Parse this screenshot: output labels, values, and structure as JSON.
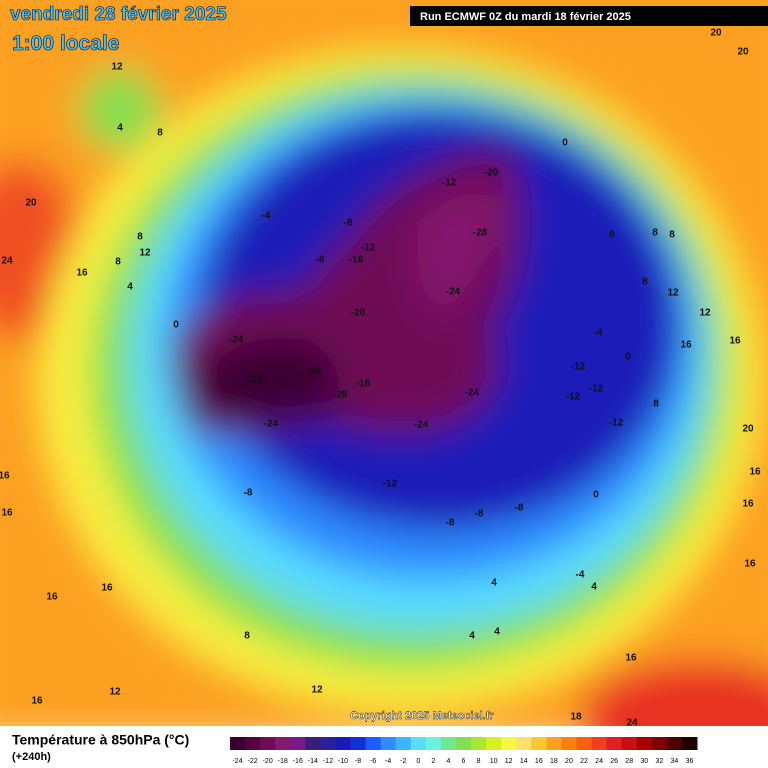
{
  "header": {
    "title": "vendredi 28 février 2025",
    "time": "1:00 locale",
    "run": "Run ECMWF 0Z du mardi 18 février 2025"
  },
  "copyright": "Copyright 2025 Meteociel.fr",
  "legend": {
    "title": "Température à 850hPa (°C)",
    "lead": "(+240h)",
    "ticks": [
      -24,
      -22,
      -20,
      -18,
      -16,
      -14,
      -12,
      -10,
      -8,
      -6,
      -4,
      -2,
      0,
      2,
      4,
      6,
      8,
      10,
      12,
      14,
      16,
      18,
      20,
      22,
      24,
      26,
      28,
      30,
      32,
      34,
      36
    ],
    "colors": [
      "#3a0030",
      "#55003f",
      "#6e0a57",
      "#86186e",
      "#7a1a8a",
      "#3a1e78",
      "#2a2098",
      "#1a1ab8",
      "#1030d8",
      "#1e5cff",
      "#2e8cff",
      "#3cb4ff",
      "#58dcff",
      "#6cf0e0",
      "#70e890",
      "#80e050",
      "#a8e830",
      "#d8f020",
      "#f8f840",
      "#fce070",
      "#fcc830",
      "#fca020",
      "#fc8010",
      "#f86010",
      "#f04020",
      "#e02020",
      "#c81010",
      "#a80000",
      "#800000",
      "#500000",
      "#200000"
    ]
  },
  "map_labels": [
    12,
    4,
    8,
    20,
    24,
    12,
    16,
    8,
    8,
    4,
    0,
    -4,
    -8,
    -12,
    -8,
    -16,
    -20,
    -24,
    -28,
    -28,
    -16,
    -28,
    -24,
    -12,
    -20,
    -28,
    -24,
    -24,
    -24,
    -12,
    -12,
    -12,
    -12,
    -12,
    -8,
    -8,
    -8,
    -8,
    -4,
    0,
    0,
    4,
    4,
    4,
    -4,
    4,
    8,
    8,
    8,
    12,
    12,
    16,
    16,
    8,
    20,
    16,
    16,
    16,
    16,
    18,
    24,
    20,
    20,
    16,
    16,
    8,
    12,
    16,
    12,
    16,
    16,
    0,
    8
  ]
}
